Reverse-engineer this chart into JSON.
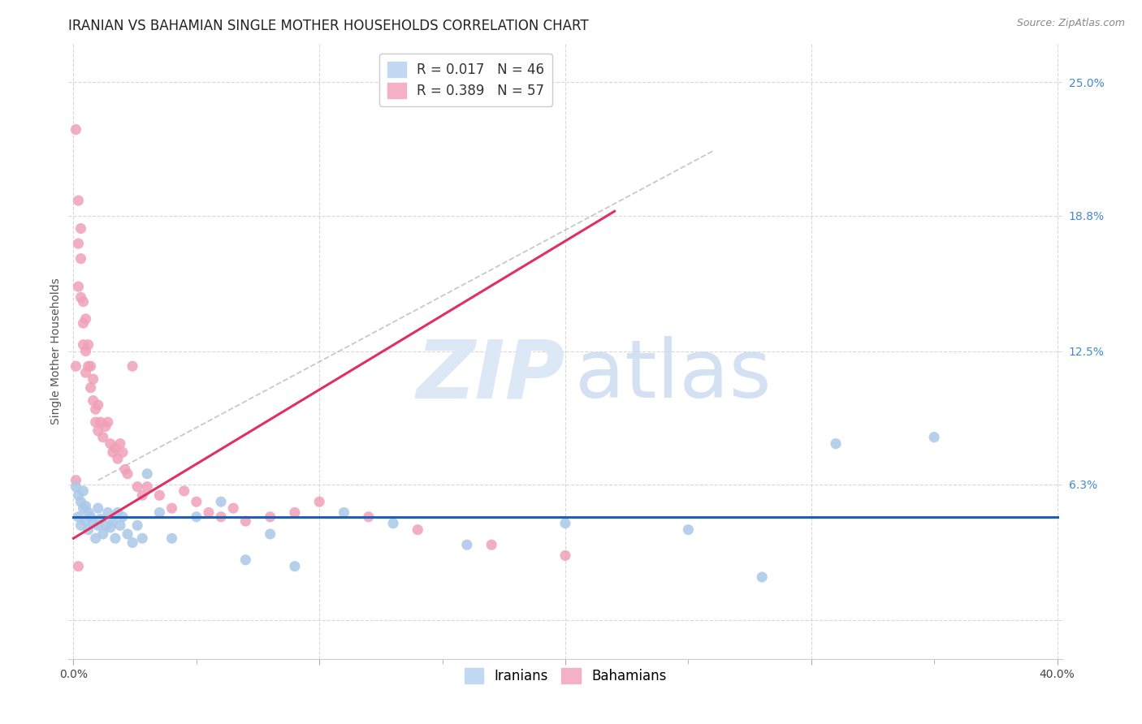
{
  "title": "IRANIAN VS BAHAMIAN SINGLE MOTHER HOUSEHOLDS CORRELATION CHART",
  "source": "Source: ZipAtlas.com",
  "ylabel": "Single Mother Households",
  "ytick_labels": [
    "",
    "6.3%",
    "12.5%",
    "18.8%",
    "25.0%"
  ],
  "ytick_values": [
    0.0,
    0.063,
    0.125,
    0.188,
    0.25
  ],
  "xtick_values": [
    0.0,
    0.05,
    0.1,
    0.15,
    0.2,
    0.25,
    0.3,
    0.35,
    0.4
  ],
  "xlim": [
    -0.002,
    0.402
  ],
  "ylim": [
    -0.018,
    0.268
  ],
  "iranian_R": 0.017,
  "iranian_N": 46,
  "bahamian_R": 0.389,
  "bahamian_N": 57,
  "iranian_color": "#aac8e8",
  "bahamian_color": "#f0a0b8",
  "iranian_line_color": "#2060b0",
  "bahamian_line_color": "#e03060",
  "title_fontsize": 12,
  "axis_fontsize": 10,
  "tick_fontsize": 10,
  "legend_fontsize": 12,
  "background_color": "#ffffff",
  "grid_color": "#d8d8d8",
  "iranians_x": [
    0.001,
    0.002,
    0.002,
    0.003,
    0.003,
    0.004,
    0.004,
    0.005,
    0.005,
    0.006,
    0.006,
    0.007,
    0.008,
    0.009,
    0.01,
    0.01,
    0.011,
    0.012,
    0.013,
    0.014,
    0.015,
    0.016,
    0.017,
    0.018,
    0.019,
    0.02,
    0.022,
    0.024,
    0.026,
    0.028,
    0.03,
    0.035,
    0.04,
    0.05,
    0.06,
    0.07,
    0.08,
    0.09,
    0.11,
    0.13,
    0.16,
    0.2,
    0.25,
    0.28,
    0.31,
    0.35
  ],
  "iranians_y": [
    0.062,
    0.058,
    0.048,
    0.055,
    0.044,
    0.052,
    0.06,
    0.046,
    0.053,
    0.05,
    0.042,
    0.048,
    0.045,
    0.038,
    0.052,
    0.044,
    0.047,
    0.04,
    0.044,
    0.05,
    0.043,
    0.046,
    0.038,
    0.05,
    0.044,
    0.048,
    0.04,
    0.036,
    0.044,
    0.038,
    0.068,
    0.05,
    0.038,
    0.048,
    0.055,
    0.028,
    0.04,
    0.025,
    0.05,
    0.045,
    0.035,
    0.045,
    0.042,
    0.02,
    0.082,
    0.085
  ],
  "bahamians_x": [
    0.001,
    0.001,
    0.001,
    0.002,
    0.002,
    0.002,
    0.003,
    0.003,
    0.003,
    0.004,
    0.004,
    0.004,
    0.005,
    0.005,
    0.005,
    0.006,
    0.006,
    0.007,
    0.007,
    0.008,
    0.008,
    0.009,
    0.009,
    0.01,
    0.01,
    0.011,
    0.012,
    0.013,
    0.014,
    0.015,
    0.016,
    0.017,
    0.018,
    0.019,
    0.02,
    0.021,
    0.022,
    0.024,
    0.026,
    0.028,
    0.03,
    0.035,
    0.04,
    0.045,
    0.05,
    0.055,
    0.06,
    0.065,
    0.07,
    0.08,
    0.09,
    0.1,
    0.12,
    0.14,
    0.17,
    0.2,
    0.002
  ],
  "bahamians_y": [
    0.228,
    0.118,
    0.065,
    0.195,
    0.175,
    0.155,
    0.182,
    0.168,
    0.15,
    0.148,
    0.138,
    0.128,
    0.14,
    0.125,
    0.115,
    0.128,
    0.118,
    0.118,
    0.108,
    0.112,
    0.102,
    0.098,
    0.092,
    0.1,
    0.088,
    0.092,
    0.085,
    0.09,
    0.092,
    0.082,
    0.078,
    0.08,
    0.075,
    0.082,
    0.078,
    0.07,
    0.068,
    0.118,
    0.062,
    0.058,
    0.062,
    0.058,
    0.052,
    0.06,
    0.055,
    0.05,
    0.048,
    0.052,
    0.046,
    0.048,
    0.05,
    0.055,
    0.048,
    0.042,
    0.035,
    0.03,
    0.025
  ],
  "iranian_line_x": [
    0.0,
    0.4
  ],
  "iranian_line_y": [
    0.048,
    0.048
  ],
  "bahamian_line_x": [
    0.0,
    0.22
  ],
  "bahamian_line_y": [
    0.038,
    0.19
  ],
  "dash_line_x": [
    0.01,
    0.26
  ],
  "dash_line_y": [
    0.065,
    0.218
  ]
}
